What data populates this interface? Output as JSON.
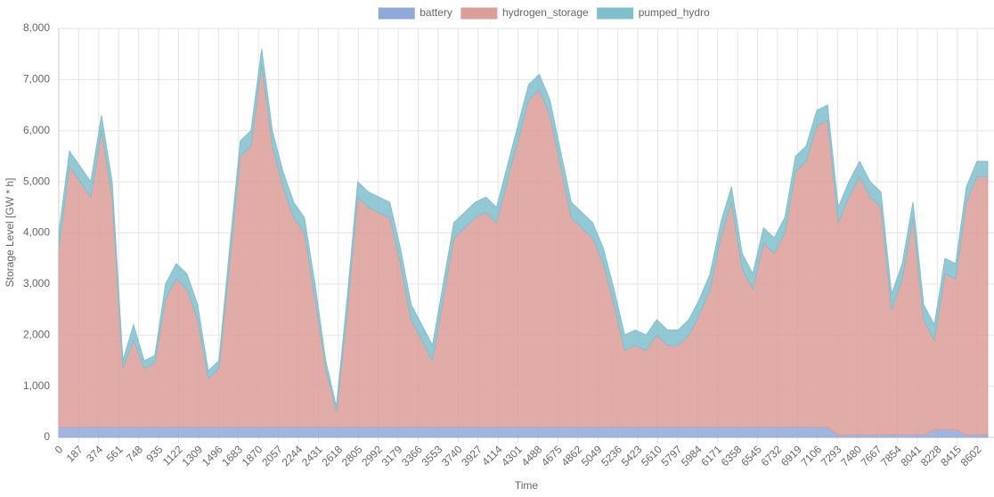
{
  "chart_data": {
    "type": "area",
    "stacked": true,
    "x_label": "Time",
    "y_label": "Storage Level [GW * h]",
    "x": [
      0,
      100,
      200,
      300,
      400,
      500,
      600,
      700,
      800,
      900,
      1000,
      1100,
      1200,
      1300,
      1400,
      1500,
      1600,
      1700,
      1800,
      1900,
      2000,
      2100,
      2200,
      2300,
      2400,
      2500,
      2600,
      2700,
      2800,
      2900,
      3000,
      3100,
      3200,
      3300,
      3400,
      3500,
      3600,
      3700,
      3800,
      3900,
      4000,
      4100,
      4200,
      4300,
      4400,
      4500,
      4600,
      4700,
      4800,
      4900,
      5000,
      5100,
      5200,
      5300,
      5400,
      5500,
      5600,
      5700,
      5800,
      5900,
      6000,
      6100,
      6200,
      6300,
      6400,
      6500,
      6600,
      6700,
      6800,
      6900,
      7000,
      7100,
      7200,
      7300,
      7400,
      7500,
      7600,
      7700,
      7800,
      7900,
      8000,
      8100,
      8200,
      8300,
      8400,
      8500,
      8600,
      8700
    ],
    "series": [
      {
        "name": "battery",
        "color": "#8fa9da",
        "values": [
          200,
          200,
          200,
          200,
          200,
          200,
          200,
          200,
          200,
          200,
          200,
          200,
          200,
          200,
          200,
          200,
          200,
          200,
          200,
          200,
          200,
          200,
          200,
          200,
          200,
          200,
          200,
          200,
          200,
          200,
          200,
          200,
          200,
          200,
          200,
          200,
          200,
          200,
          200,
          200,
          200,
          200,
          200,
          200,
          200,
          200,
          200,
          200,
          200,
          200,
          200,
          200,
          200,
          200,
          200,
          200,
          200,
          200,
          200,
          200,
          200,
          200,
          200,
          200,
          200,
          200,
          200,
          200,
          200,
          200,
          200,
          200,
          200,
          50,
          50,
          50,
          50,
          50,
          50,
          50,
          50,
          50,
          150,
          150,
          150,
          50,
          50,
          50
        ]
      },
      {
        "name": "hydrogen_storage",
        "color": "#dc9e98",
        "values": [
          3500,
          5100,
          4800,
          4500,
          5800,
          4500,
          1150,
          1700,
          1150,
          1250,
          2500,
          2900,
          2700,
          2100,
          950,
          1150,
          3200,
          5300,
          5500,
          7100,
          5500,
          4700,
          4100,
          3800,
          2500,
          1150,
          300,
          2200,
          4500,
          4300,
          4200,
          4100,
          3200,
          2100,
          1700,
          1300,
          2500,
          3700,
          3900,
          4100,
          4200,
          4000,
          4800,
          5600,
          6400,
          6600,
          6100,
          5100,
          4100,
          3900,
          3700,
          3200,
          2400,
          1500,
          1600,
          1500,
          1800,
          1600,
          1600,
          1800,
          2200,
          2700,
          3700,
          4400,
          3100,
          2700,
          3600,
          3400,
          3800,
          5000,
          5200,
          5900,
          6000,
          4150,
          4650,
          5050,
          4650,
          4450,
          2450,
          3050,
          4250,
          2250,
          1750,
          3050,
          2950,
          4550,
          5050,
          5050
        ]
      },
      {
        "name": "pumped_hydro",
        "color": "#80bfcc",
        "values": [
          300,
          300,
          300,
          300,
          300,
          300,
          150,
          300,
          150,
          150,
          300,
          300,
          300,
          300,
          150,
          150,
          300,
          300,
          300,
          300,
          300,
          300,
          300,
          300,
          300,
          150,
          100,
          300,
          300,
          300,
          300,
          300,
          300,
          300,
          300,
          300,
          300,
          300,
          300,
          300,
          300,
          300,
          300,
          300,
          300,
          300,
          300,
          300,
          300,
          300,
          300,
          300,
          300,
          300,
          300,
          300,
          300,
          300,
          300,
          300,
          300,
          300,
          300,
          300,
          300,
          300,
          300,
          300,
          300,
          300,
          300,
          300,
          300,
          300,
          300,
          300,
          300,
          300,
          300,
          300,
          300,
          300,
          300,
          300,
          300,
          300,
          300,
          300
        ]
      }
    ],
    "xlim": [
      0,
      8759
    ],
    "xticks": [
      0,
      187,
      374,
      561,
      748,
      935,
      1122,
      1309,
      1496,
      1683,
      1870,
      2057,
      2244,
      2431,
      2618,
      2805,
      2992,
      3179,
      3366,
      3553,
      3740,
      3927,
      4114,
      4301,
      4488,
      4675,
      4862,
      5049,
      5236,
      5423,
      5610,
      5797,
      5984,
      6171,
      6358,
      6545,
      6732,
      6919,
      7106,
      7293,
      7480,
      7667,
      7854,
      8041,
      8228,
      8415,
      8602
    ],
    "ylim": [
      0,
      8000
    ],
    "yticks": [
      0,
      {
        "value": 1000,
        "label": "1,000"
      },
      {
        "value": 2000,
        "label": "2,000"
      },
      {
        "value": 3000,
        "label": "3,000"
      },
      {
        "value": 4000,
        "label": "4,000"
      },
      {
        "value": 5000,
        "label": "5,000"
      },
      {
        "value": 6000,
        "label": "6,000"
      },
      {
        "value": 7000,
        "label": "7,000"
      },
      {
        "value": 8000,
        "label": "8,000"
      }
    ],
    "grid": true,
    "legend": "top"
  }
}
